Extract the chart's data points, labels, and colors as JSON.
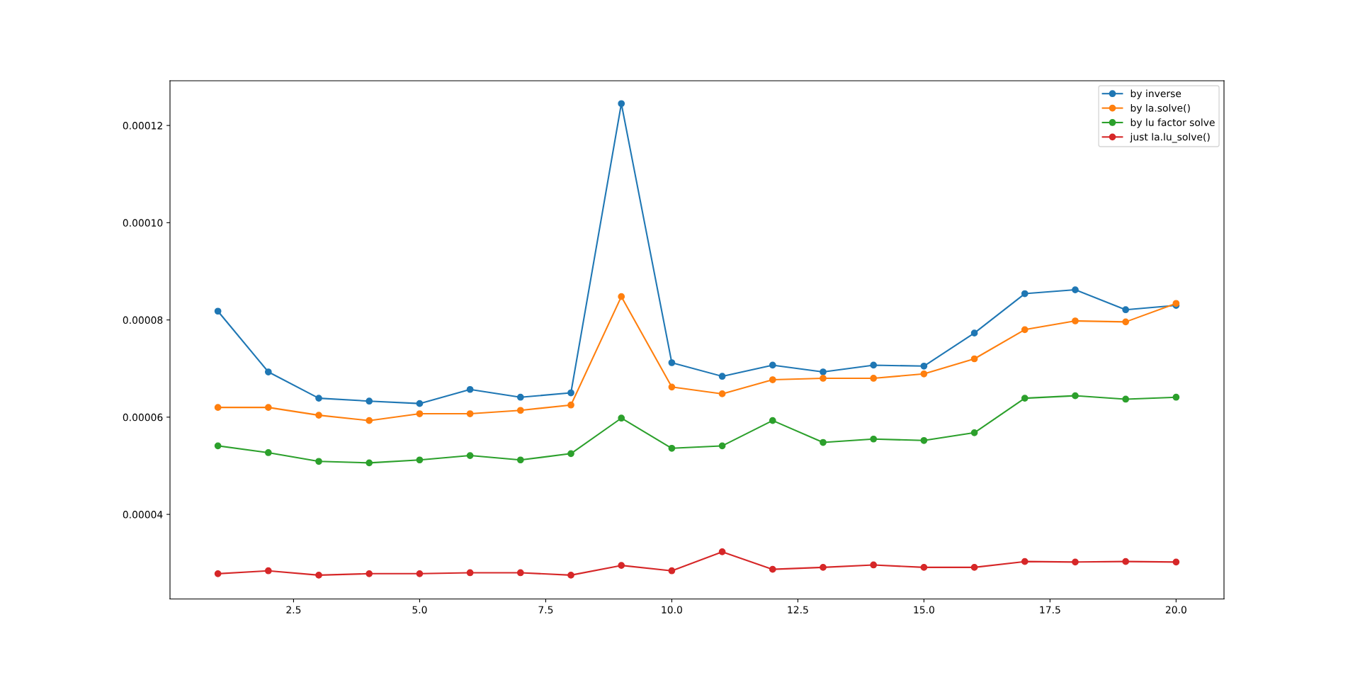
{
  "chart_data": {
    "type": "line",
    "x": [
      1,
      2,
      3,
      4,
      5,
      6,
      7,
      8,
      9,
      10,
      11,
      12,
      13,
      14,
      15,
      16,
      17,
      18,
      19,
      20
    ],
    "series": [
      {
        "name": "by inverse",
        "color": "#1f77b4",
        "values": [
          8.18e-05,
          6.93e-05,
          6.39e-05,
          6.33e-05,
          6.28e-05,
          6.57e-05,
          6.41e-05,
          6.5e-05,
          0.0001245,
          7.12e-05,
          6.84e-05,
          7.07e-05,
          6.93e-05,
          7.07e-05,
          7.05e-05,
          7.73e-05,
          8.54e-05,
          8.62e-05,
          8.21e-05,
          8.3e-05
        ]
      },
      {
        "name": "by la.solve()",
        "color": "#ff7f0e",
        "values": [
          6.2e-05,
          6.2e-05,
          6.04e-05,
          5.93e-05,
          6.07e-05,
          6.07e-05,
          6.14e-05,
          6.25e-05,
          8.48e-05,
          6.62e-05,
          6.48e-05,
          6.77e-05,
          6.8e-05,
          6.8e-05,
          6.89e-05,
          7.2e-05,
          7.8e-05,
          7.98e-05,
          7.96e-05,
          8.34e-05
        ]
      },
      {
        "name": "by lu factor solve",
        "color": "#2ca02c",
        "values": [
          5.41e-05,
          5.27e-05,
          5.09e-05,
          5.06e-05,
          5.12e-05,
          5.21e-05,
          5.12e-05,
          5.25e-05,
          5.98e-05,
          5.36e-05,
          5.41e-05,
          5.93e-05,
          5.48e-05,
          5.55e-05,
          5.52e-05,
          5.68e-05,
          6.39e-05,
          6.44e-05,
          6.37e-05,
          6.41e-05
        ]
      },
      {
        "name": "just la.lu_solve()",
        "color": "#d62728",
        "values": [
          2.78e-05,
          2.84e-05,
          2.75e-05,
          2.78e-05,
          2.78e-05,
          2.8e-05,
          2.8e-05,
          2.75e-05,
          2.95e-05,
          2.84e-05,
          3.23e-05,
          2.87e-05,
          2.91e-05,
          2.96e-05,
          2.91e-05,
          2.91e-05,
          3.03e-05,
          3.02e-05,
          3.03e-05,
          3.02e-05
        ]
      }
    ],
    "xlim": [
      0.05,
      20.95
    ],
    "xticks": [
      {
        "value": 2.5,
        "label": "2.5"
      },
      {
        "value": 5,
        "label": "5.0"
      },
      {
        "value": 7.5,
        "label": "7.5"
      },
      {
        "value": 10,
        "label": "10.0"
      },
      {
        "value": 12.5,
        "label": "12.5"
      },
      {
        "value": 15,
        "label": "15.0"
      },
      {
        "value": 17.5,
        "label": "17.5"
      },
      {
        "value": 20,
        "label": "20.0"
      }
    ],
    "ylim": [
      2.26e-05,
      0.0001292
    ],
    "yticks": [
      {
        "value": 4e-05,
        "label": "0.00004"
      },
      {
        "value": 6e-05,
        "label": "0.00006"
      },
      {
        "value": 8e-05,
        "label": "0.00008"
      },
      {
        "value": 0.0001,
        "label": "0.00010"
      },
      {
        "value": 0.00012,
        "label": "0.00012"
      }
    ],
    "legend": "top right",
    "marker": "circle",
    "line_style": "solid",
    "grid": false
  }
}
